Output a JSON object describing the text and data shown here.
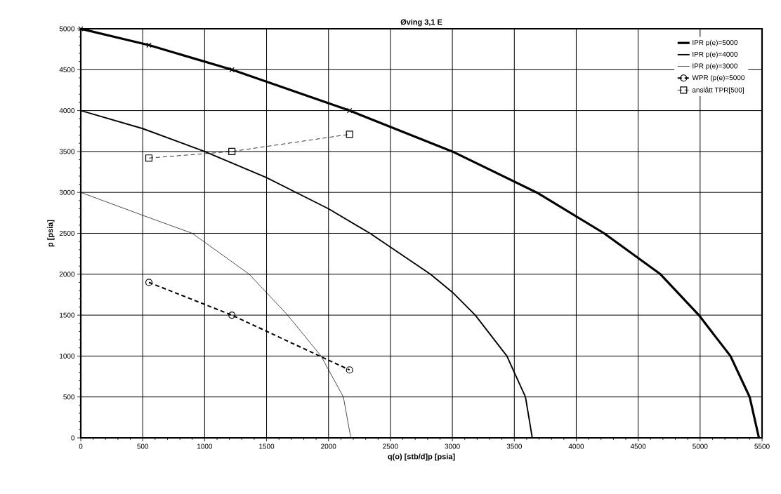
{
  "chart_data": {
    "type": "line",
    "title": "Øving 3,1 E",
    "xlabel": "q(o) [stb/d]p [psia]",
    "ylabel": "p [psia]",
    "xlim": [
      0,
      5500
    ],
    "ylim": [
      0,
      5000
    ],
    "xticks": [
      0,
      500,
      1000,
      1500,
      2000,
      2500,
      3000,
      3500,
      4000,
      4500,
      5000,
      5500
    ],
    "yticks": [
      0,
      500,
      1000,
      1500,
      2000,
      2500,
      3000,
      3500,
      4000,
      4500,
      5000
    ],
    "grid": true,
    "legend": "top right",
    "marker": "none",
    "line_style": "solid",
    "series": [
      {
        "name": "IPR  p(e)=5000",
        "color": "#000000",
        "x": [
          0,
          550,
          1220,
          2170,
          3000,
          3680,
          4225,
          4680,
          4990,
          5245,
          5400,
          5475
        ],
        "values": [
          5000,
          4800,
          4500,
          4000,
          3500,
          3000,
          2500,
          2000,
          1500,
          1000,
          500,
          0
        ]
      },
      {
        "name": "IPR  p(e)=4000",
        "color": "#000000",
        "x": [
          0,
          500,
          1000,
          1500,
          2000,
          2335,
          2823,
          3000,
          3185,
          3440,
          3590,
          3645
        ],
        "values": [
          4000,
          3780,
          3500,
          3180,
          2800,
          2500,
          2000,
          1780,
          1500,
          1000,
          500,
          0
        ]
      },
      {
        "name": "IPR  p(e)=3000",
        "color": "#000000",
        "x": [
          0,
          500,
          900,
          1360,
          1670,
          1940,
          2120,
          2180
        ],
        "values": [
          3000,
          2720,
          2500,
          2000,
          1500,
          1000,
          500,
          0
        ]
      },
      {
        "name": "WPR  (p(e)=5000",
        "color": "#000000",
        "marker": "circle",
        "line_style": "dashed",
        "x": [
          550,
          1220,
          2170
        ],
        "values": [
          1900,
          1500,
          830
        ]
      },
      {
        "name": "anslått TPR[500]",
        "color": "#000000",
        "marker": "square",
        "line_style": "dashed",
        "x": [
          550,
          1220,
          2170
        ],
        "values": [
          3420,
          3500,
          3710
        ]
      },
      {
        "type": "scatter",
        "color": "#000000",
        "marker": "cross",
        "x": [
          0,
          550,
          1220,
          2170
        ],
        "values": [
          5000,
          4800,
          4500,
          4000
        ]
      }
    ]
  }
}
